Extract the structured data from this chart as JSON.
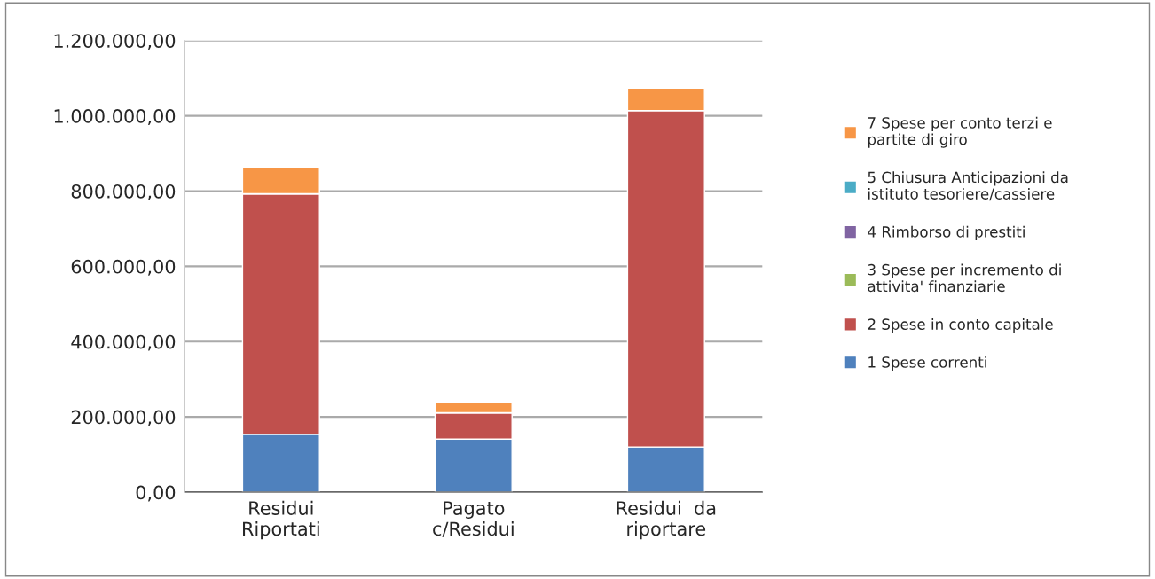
{
  "chart_data": {
    "type": "bar",
    "stacked": true,
    "categories": [
      "Residui\nRiportati",
      "Pagato\nc/Residui",
      "Residui  da\nriportare"
    ],
    "series": [
      {
        "name": "1 Spese correnti",
        "color": "#4f81bd",
        "values": [
          154000,
          141000,
          120000
        ]
      },
      {
        "name": "2 Spese in conto capitale",
        "color": "#c0504d",
        "values": [
          639000,
          70000,
          894000
        ]
      },
      {
        "name": "3 Spese per incremento di attivita' finanziarie",
        "color": "#9bbb59",
        "values": [
          0,
          0,
          0
        ]
      },
      {
        "name": "4 Rimborso di prestiti",
        "color": "#8064a2",
        "values": [
          0,
          0,
          0
        ]
      },
      {
        "name": "5 Chiusura Anticipazioni da istituto tesoriere/cassiere",
        "color": "#4bacc6",
        "values": [
          0,
          0,
          0
        ]
      },
      {
        "name": "7 Spese per conto terzi e partite di giro",
        "color": "#f79646",
        "values": [
          70000,
          29000,
          60000
        ]
      }
    ],
    "ylim": [
      0,
      1200000
    ],
    "yticks": [
      {
        "value": 0,
        "label": "0,00"
      },
      {
        "value": 200000,
        "label": "200.000,00"
      },
      {
        "value": 400000,
        "label": "400.000,00"
      },
      {
        "value": 600000,
        "label": "600.000,00"
      },
      {
        "value": 800000,
        "label": "800.000,00"
      },
      {
        "value": 1000000,
        "label": "1.000.000,00"
      },
      {
        "value": 1200000,
        "label": "1.200.000,00"
      }
    ],
    "grid": "y",
    "legend": "right"
  }
}
